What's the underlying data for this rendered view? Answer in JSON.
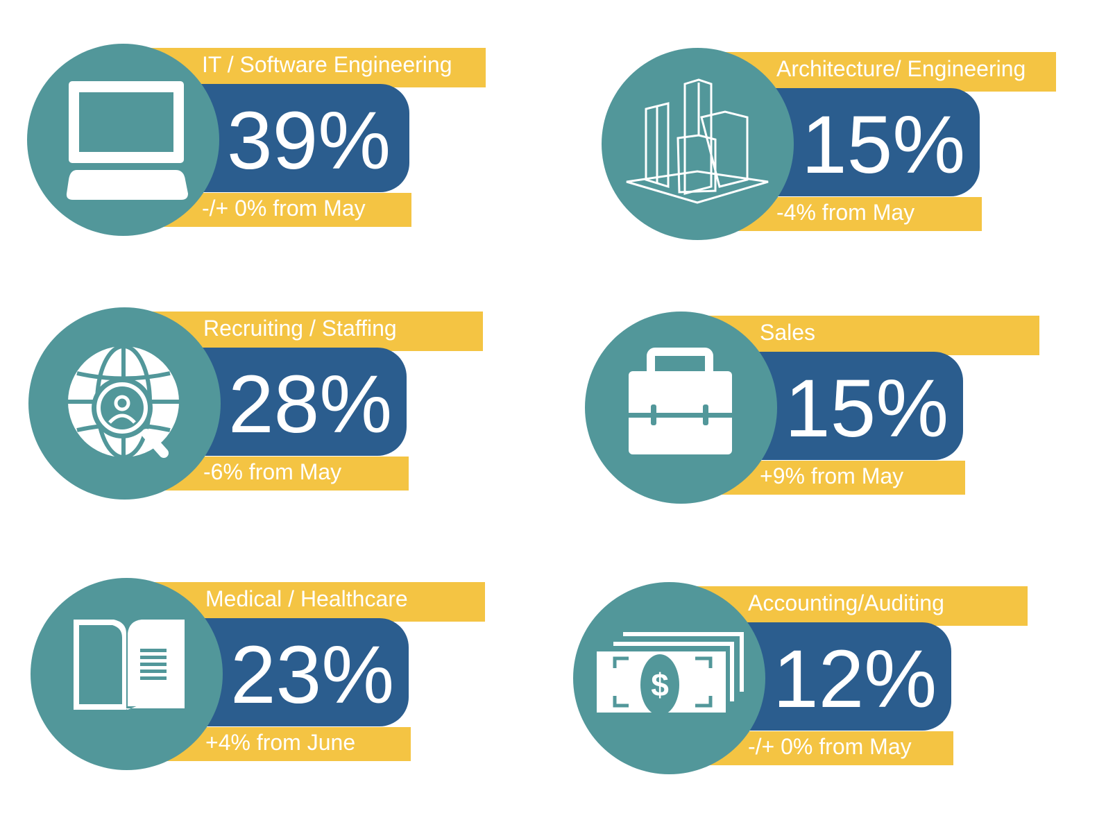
{
  "colors": {
    "teal": "#52979A",
    "blue": "#2B5D8E",
    "yellow": "#F4C443"
  },
  "cards": [
    {
      "icon": "computer-icon",
      "label": "IT / Software Engineering",
      "percent": "39%",
      "change": "-/+ 0% from May"
    },
    {
      "icon": "buildings-icon",
      "label": "Architecture/ Engineering",
      "percent": "15%",
      "change": "-4% from May"
    },
    {
      "icon": "globe-search-icon",
      "label": "Recruiting / Staffing",
      "percent": "28%",
      "change": "-6% from May"
    },
    {
      "icon": "briefcase-icon",
      "label": "Sales",
      "percent": "15%",
      "change": "+9% from May"
    },
    {
      "icon": "book-icon",
      "label": "Medical / Healthcare",
      "percent": "23%",
      "change": "+4% from June"
    },
    {
      "icon": "money-icon",
      "label": "Accounting/Auditing",
      "percent": "12%",
      "change": "-/+ 0% from May"
    }
  ]
}
